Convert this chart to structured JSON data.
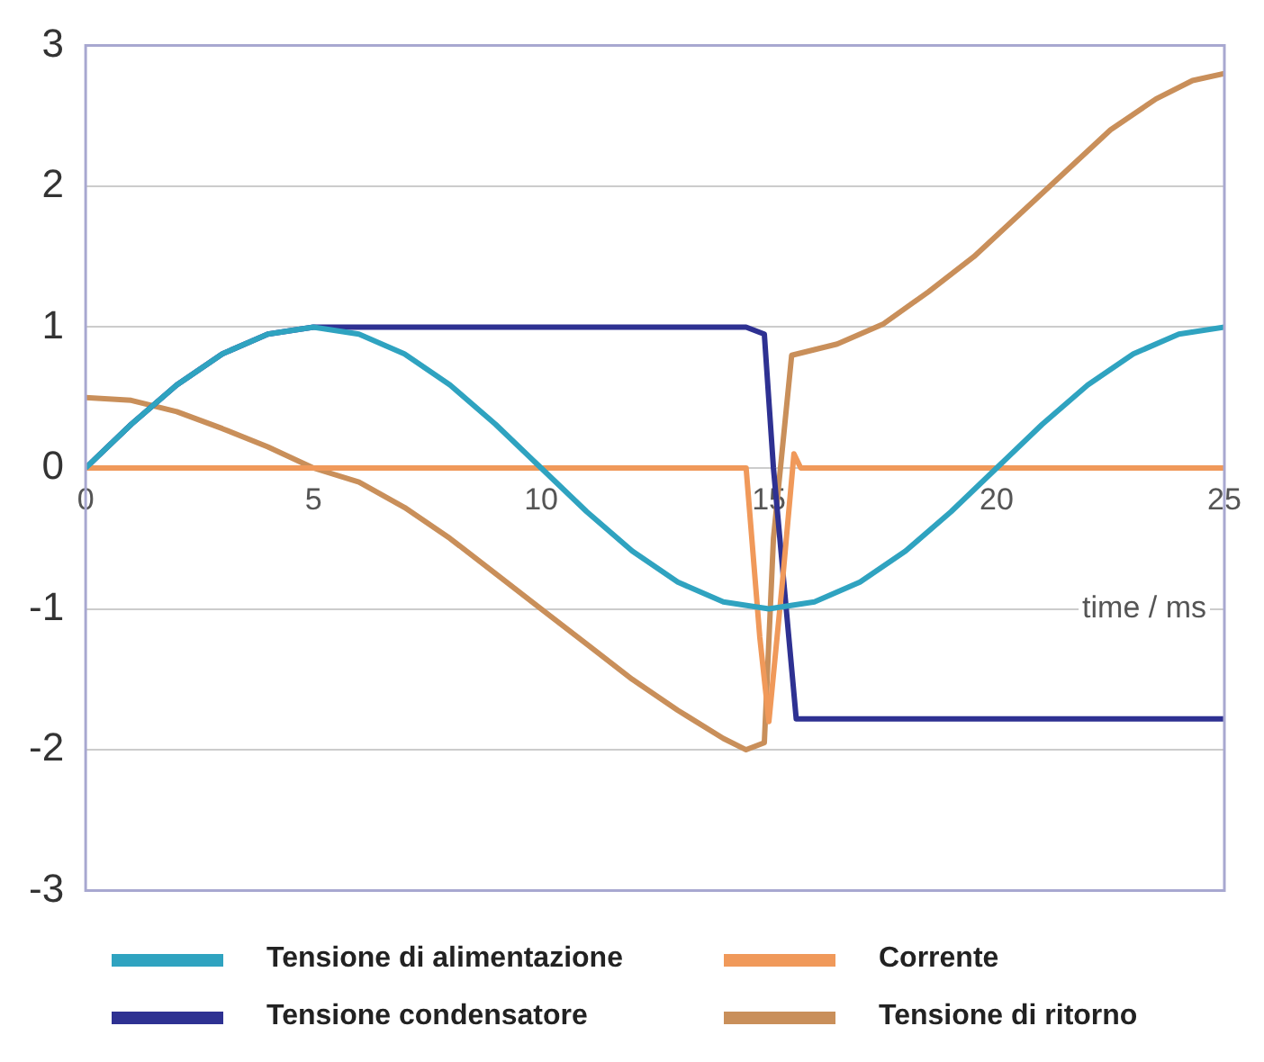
{
  "chart_data": {
    "type": "line",
    "xlabel": "time / ms",
    "xlim": [
      0,
      25
    ],
    "xticks": [
      0,
      5,
      10,
      15,
      20,
      25
    ],
    "ylim": [
      -3,
      3
    ],
    "yticks": [
      -3,
      -2,
      -1,
      0,
      1,
      2,
      3
    ],
    "grid": "y",
    "legend": "bottom",
    "marker": "none",
    "line_style": "solid",
    "series": [
      {
        "name": "Tensione di alimentazione",
        "color": "#2fa3c0",
        "x": [
          0,
          1,
          2,
          3,
          4,
          5,
          6,
          7,
          8,
          9,
          10,
          11,
          12,
          13,
          14,
          15,
          16,
          17,
          18,
          19,
          20,
          21,
          22,
          23,
          24,
          25
        ],
        "values": [
          0,
          0.31,
          0.59,
          0.81,
          0.95,
          1,
          0.95,
          0.81,
          0.59,
          0.31,
          0,
          -0.31,
          -0.59,
          -0.81,
          -0.95,
          -1,
          -0.95,
          -0.81,
          -0.59,
          -0.31,
          0,
          0.31,
          0.59,
          0.81,
          0.95,
          1
        ]
      },
      {
        "name": "Corrente",
        "color": "#f0995a",
        "x": [
          0,
          14.5,
          14.8,
          15,
          15.3,
          15.55,
          15.7,
          25
        ],
        "values": [
          0,
          0,
          -1.2,
          -1.8,
          -0.8,
          0.1,
          0,
          0
        ]
      },
      {
        "name": "Tensione condensatore",
        "color": "#2e3192",
        "x": [
          0,
          1,
          2,
          3,
          4,
          5,
          14.5,
          14.9,
          15.1,
          15.6,
          25
        ],
        "values": [
          0,
          0.31,
          0.59,
          0.81,
          0.95,
          1,
          1,
          0.95,
          0,
          -1.78,
          -1.78
        ]
      },
      {
        "name": "Tensione di ritorno",
        "color": "#c98f5a",
        "x": [
          0,
          1,
          2,
          3,
          4,
          5,
          6,
          7,
          8,
          9,
          10,
          11,
          12,
          13,
          14,
          14.5,
          14.9,
          15.1,
          15.5,
          16.5,
          17.5,
          18.5,
          19.5,
          20.5,
          21.5,
          22.5,
          23.5,
          24.3,
          25
        ],
        "values": [
          0.5,
          0.48,
          0.4,
          0.28,
          0.15,
          0,
          -0.1,
          -0.28,
          -0.5,
          -0.75,
          -1,
          -1.25,
          -1.5,
          -1.72,
          -1.92,
          -2,
          -1.95,
          -0.5,
          0.8,
          0.88,
          1.02,
          1.25,
          1.5,
          1.8,
          2.1,
          2.4,
          2.62,
          2.75,
          2.8
        ]
      }
    ]
  }
}
